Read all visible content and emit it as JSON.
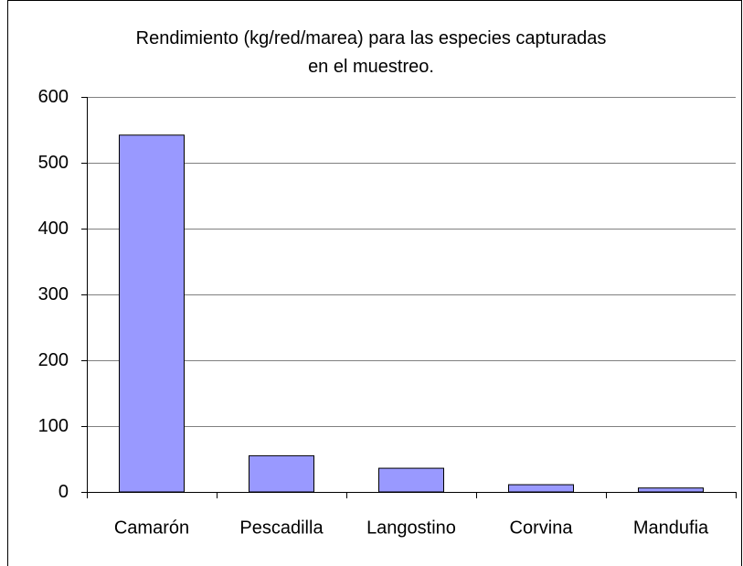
{
  "chart_data": {
    "type": "bar",
    "title": "Rendimiento (kg/red/marea) para las especies capturadas en el muestreo.",
    "categories": [
      "Camarón",
      "Pescadilla",
      "Langostino",
      "Corvina",
      "Mandufia"
    ],
    "values": [
      542,
      55,
      36,
      11,
      6
    ],
    "color": "#9999ff",
    "ylim": [
      0,
      600
    ],
    "yticks": [
      0,
      100,
      200,
      300,
      400,
      500,
      600
    ],
    "grid": true
  }
}
